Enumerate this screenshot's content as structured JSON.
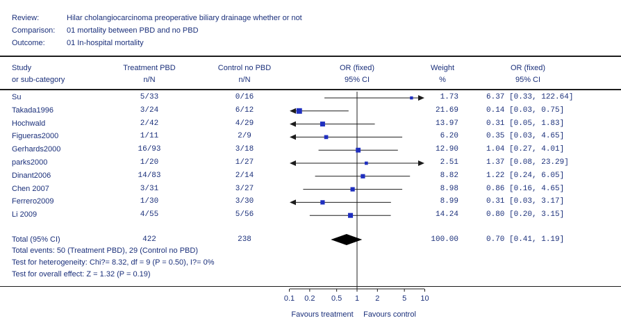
{
  "header": {
    "review_label": "Review:",
    "review_value": "Hilar cholangiocarcinoma preoperative biliary drainage whether or not",
    "comparison_label": "Comparison:",
    "comparison_value": "01 mortality between PBD and no PBD",
    "outcome_label": "Outcome:",
    "outcome_value": "01 In-hospital mortality"
  },
  "columns": {
    "study_1": "Study",
    "study_2": "or sub-category",
    "treatment_1": "Treatment PBD",
    "treatment_2": "n/N",
    "control_1": "Control no PBD",
    "control_2": "n/N",
    "plot_1": "OR (fixed)",
    "plot_2": "95% CI",
    "weight_1": "Weight",
    "weight_2": "%",
    "or_1": "OR (fixed)",
    "or_2": "95% CI"
  },
  "total": {
    "label": "Total (95% CI)",
    "treatment": "422",
    "control": "238",
    "weight": "100.00",
    "ci_text": "0.70 [0.41, 1.19]",
    "events": "Total events: 50 (Treatment PBD), 29 (Control no PBD)",
    "heterogeneity": "Test for heterogeneity: Chi?= 8.32, df = 9 (P = 0.50), I?= 0%",
    "overall": "Test for overall effect: Z = 1.32 (P = 0.19)"
  },
  "axis": {
    "favours_left": "Favours treatment",
    "favours_right": "Favours control"
  },
  "colors": {
    "text": "#1a2f7a",
    "marker": "#1f2fbf",
    "line": "#1c1c1c"
  },
  "chart_data": {
    "type": "forest",
    "scale": "log",
    "xlim": [
      0.1,
      10
    ],
    "ticks": [
      {
        "value": 0.1,
        "label": "0.1"
      },
      {
        "value": 0.2,
        "label": "0.2"
      },
      {
        "value": 0.5,
        "label": "0.5"
      },
      {
        "value": 1,
        "label": "1"
      },
      {
        "value": 2,
        "label": "2"
      },
      {
        "value": 5,
        "label": "5"
      },
      {
        "value": 10,
        "label": "10"
      }
    ],
    "studies": [
      {
        "name": "Su",
        "treatment": "5/33",
        "control": "0/16",
        "weight": "1.73",
        "or": 6.37,
        "lo": 0.33,
        "hi": 122.64,
        "ci_text": "6.37 [0.33, 122.64]"
      },
      {
        "name": "Takada1996",
        "treatment": "3/24",
        "control": "6/12",
        "weight": "21.69",
        "or": 0.14,
        "lo": 0.03,
        "hi": 0.75,
        "ci_text": "0.14 [0.03, 0.75]"
      },
      {
        "name": "Hochwald",
        "treatment": "2/42",
        "control": "4/29",
        "weight": "13.97",
        "or": 0.31,
        "lo": 0.05,
        "hi": 1.83,
        "ci_text": "0.31 [0.05, 1.83]"
      },
      {
        "name": "Figueras2000",
        "treatment": "1/11",
        "control": "2/9",
        "weight": "6.20",
        "or": 0.35,
        "lo": 0.03,
        "hi": 4.65,
        "ci_text": "0.35 [0.03, 4.65]"
      },
      {
        "name": "Gerhards2000",
        "treatment": "16/93",
        "control": "3/18",
        "weight": "12.90",
        "or": 1.04,
        "lo": 0.27,
        "hi": 4.01,
        "ci_text": "1.04 [0.27, 4.01]"
      },
      {
        "name": "parks2000",
        "treatment": "1/20",
        "control": "1/27",
        "weight": "2.51",
        "or": 1.37,
        "lo": 0.08,
        "hi": 23.29,
        "ci_text": "1.37 [0.08, 23.29]"
      },
      {
        "name": "Dinant2006",
        "treatment": "14/83",
        "control": "2/14",
        "weight": "8.82",
        "or": 1.22,
        "lo": 0.24,
        "hi": 6.05,
        "ci_text": "1.22 [0.24, 6.05]"
      },
      {
        "name": "Chen 2007",
        "treatment": "3/31",
        "control": "3/27",
        "weight": "8.98",
        "or": 0.86,
        "lo": 0.16,
        "hi": 4.65,
        "ci_text": "0.86 [0.16, 4.65]"
      },
      {
        "name": "Ferrero2009",
        "treatment": "1/30",
        "control": "3/30",
        "weight": "8.99",
        "or": 0.31,
        "lo": 0.03,
        "hi": 3.17,
        "ci_text": "0.31 [0.03, 3.17]"
      },
      {
        "name": "Li 2009",
        "treatment": "4/55",
        "control": "5/56",
        "weight": "14.24",
        "or": 0.8,
        "lo": 0.2,
        "hi": 3.15,
        "ci_text": "0.80 [0.20, 3.15]"
      }
    ],
    "pooled": {
      "or": 0.7,
      "lo": 0.41,
      "hi": 1.19
    }
  }
}
